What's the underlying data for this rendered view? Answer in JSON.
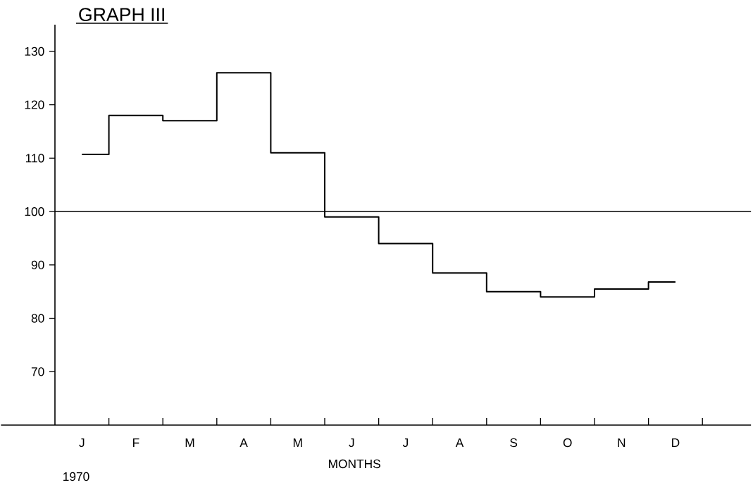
{
  "chart_data": {
    "type": "step",
    "title": "GRAPH III",
    "xlabel": "MONTHS",
    "categories": [
      "J",
      "F",
      "M",
      "A",
      "M",
      "J",
      "J",
      "A",
      "S",
      "O",
      "N",
      "D"
    ],
    "values": [
      110.7,
      118,
      117,
      126,
      111,
      99,
      94,
      88.5,
      85,
      84,
      85.5,
      86.8
    ],
    "color": "#000000",
    "ylim": [
      60,
      135
    ],
    "yticks": [
      70,
      80,
      90,
      100,
      110,
      120,
      130
    ],
    "ref_lines": [
      {
        "axis": "y",
        "value": 100,
        "color": "#000000"
      }
    ],
    "annotations": [
      "1970"
    ],
    "marker": "none",
    "line_style": "solid"
  }
}
